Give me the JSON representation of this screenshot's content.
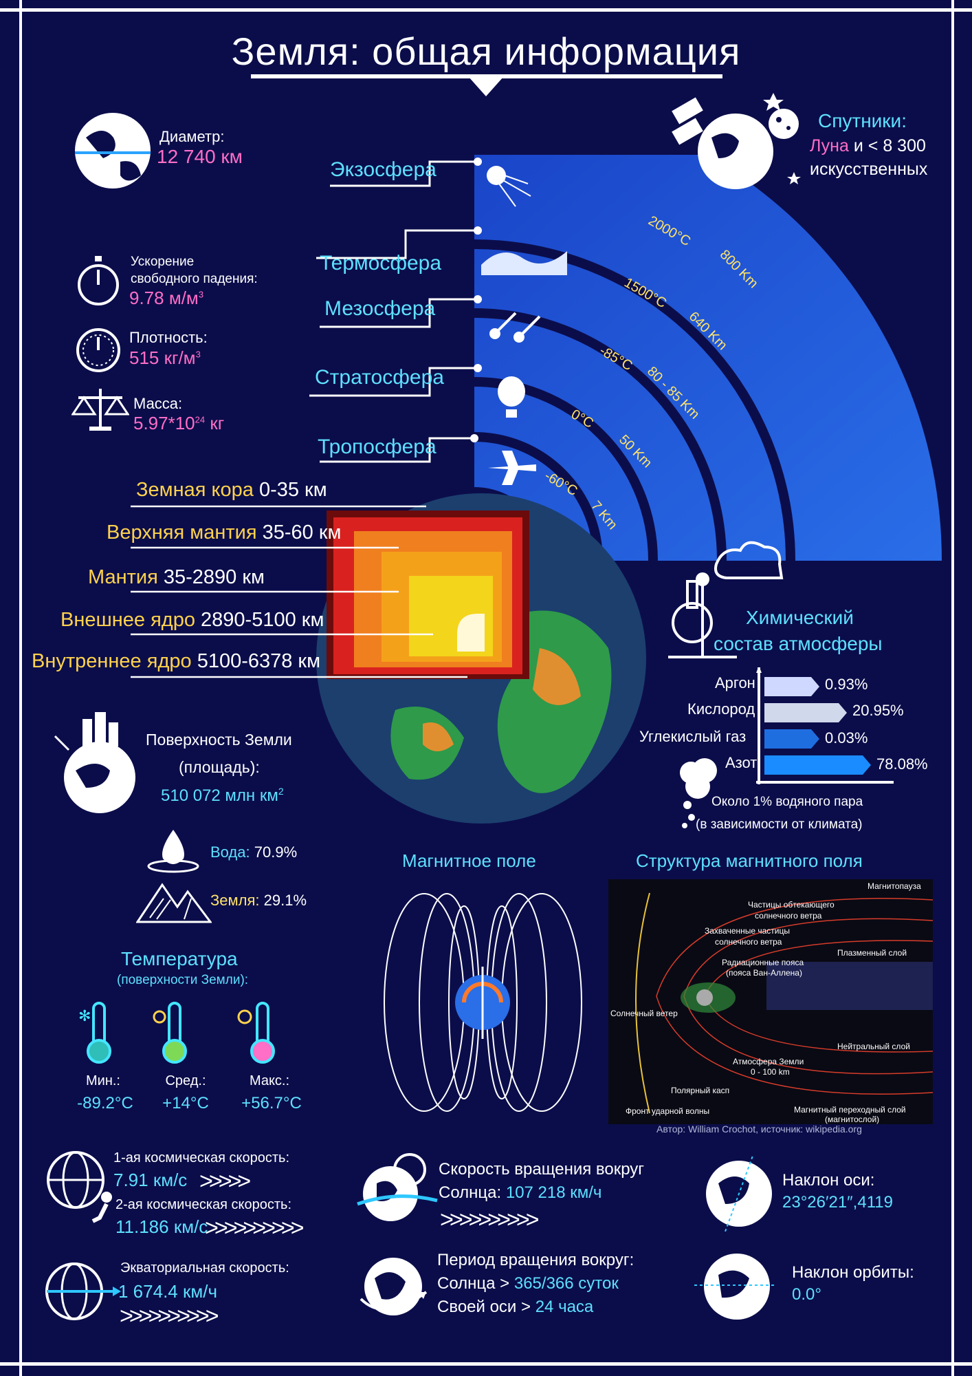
{
  "title": "Земля: общая информация",
  "diameter": {
    "label": "Диаметр:",
    "value": "12 740 км"
  },
  "satellites": {
    "title": "Спутники:",
    "moon": "Луна",
    "rest": "и < 8 300",
    "rest2": "искусственных"
  },
  "gravity": {
    "label1": "Ускорение",
    "label2": "свободного падения:",
    "value": "9.78 м/м",
    "sup": "3"
  },
  "density": {
    "label": "Плотность:",
    "value": "515 кг/м",
    "sup": "3"
  },
  "mass": {
    "label": "Масса:",
    "value": "5.97*10",
    "sup": "24",
    "unit": " кг"
  },
  "atmosphere_layers": [
    {
      "name": "Экзосфера"
    },
    {
      "name": "Термосфера",
      "temp": "2000°C",
      "height": "800 Km"
    },
    {
      "name": "Мезосфера",
      "temp": "1500°C",
      "height": "640 Km"
    },
    {
      "name": "Стратосфера",
      "temp": "-85°C",
      "height": "80 - 85 Km"
    },
    {
      "name": "Тропосфера",
      "temp": "0°C",
      "height": "50 Km"
    },
    {
      "temp": "-60°C",
      "height": "7 Km"
    }
  ],
  "earth_layers": [
    {
      "name": "Земная кора",
      "range": "0-35 км"
    },
    {
      "name": "Верхняя мантия",
      "range": "35-60 км"
    },
    {
      "name": "Мантия",
      "range": "35-2890 км"
    },
    {
      "name": "Внешнее ядро",
      "range": "2890-5100 км"
    },
    {
      "name": "Внутреннее ядро",
      "range": "5100-6378 км"
    }
  ],
  "chemistry": {
    "title1": "Химический",
    "title2": "состав атмосферы",
    "items": [
      {
        "name": "Аргон",
        "value": "0.93%"
      },
      {
        "name": "Кислород",
        "value": "20.95%"
      },
      {
        "name": "Углекислый газ",
        "value": "0.03%"
      },
      {
        "name": "Азот",
        "value": "78.08%"
      }
    ],
    "note1": "Около 1% водяного пара",
    "note2": "(в зависимости от климата)"
  },
  "surface": {
    "label1": "Поверхность Земли",
    "label2": "(площадь):",
    "value": "510 072 млн км",
    "sup": "2"
  },
  "water": {
    "label": "Вода:",
    "value": "70.9%"
  },
  "land": {
    "label": "Земля:",
    "value": "29.1%"
  },
  "temperature": {
    "title": "Температура",
    "subtitle": "(поверхности Земли):",
    "items": [
      {
        "label": "Мин.:",
        "value": "-89.2°C"
      },
      {
        "label": "Сред.:",
        "value": "+14°C"
      },
      {
        "label": "Макс.:",
        "value": "+56.7°C"
      }
    ]
  },
  "magnetic": {
    "title": "Магнитное поле"
  },
  "magnetic_structure": {
    "title": "Структура магнитного поля",
    "labels": {
      "magnetopause": "Магнитопауза",
      "particles1": "Частицы обтекающего",
      "particles2": "солнечного ветра",
      "trapped1": "Захваченные  частицы",
      "trapped2": "солнечного ветра",
      "plasma": "Плазменный слой",
      "radiation1": "Радиационные пояса",
      "radiation2": "(пояса Ван-Аллена)",
      "solar_wind": "Солнечный ветер",
      "neutral": "Нейтральный слой",
      "atmosphere1": "Атмосфера Земли",
      "atmosphere2": "0 - 100 km",
      "cusp": "Полярный касп",
      "shock": "Фронт ударной волны",
      "transition1": "Магнитный переходный слой",
      "transition2": "(магнитослой)"
    },
    "credit": "Автор: William Crochot, источник: wikipedia.org"
  },
  "cosmic_speed": {
    "first_label": "1-ая космическая скорость:",
    "first_value": "7.91 км/с",
    "second_label": "2-ая космическая скорость:",
    "second_value": "11.186 км/с"
  },
  "equatorial": {
    "label": "Экваториальная скорость:",
    "value": "1 674.4 км/ч"
  },
  "orbit_speed": {
    "label": "Скорость вращения вокруг",
    "label2": "Солнца:",
    "value": "107 218 км/ч"
  },
  "period": {
    "label": "Период вращения вокруг:",
    "sun_label": "Солнца >",
    "sun_value": "365/366 суток",
    "axis_label": "Своей оси >",
    "axis_value": "24 часа"
  },
  "axis_tilt": {
    "label": "Наклон оси:",
    "value": "23°26′21″,4119"
  },
  "orbit_tilt": {
    "label": "Наклон орбиты:",
    "value": "0.0°"
  },
  "chevrons": ">>>>>"
}
